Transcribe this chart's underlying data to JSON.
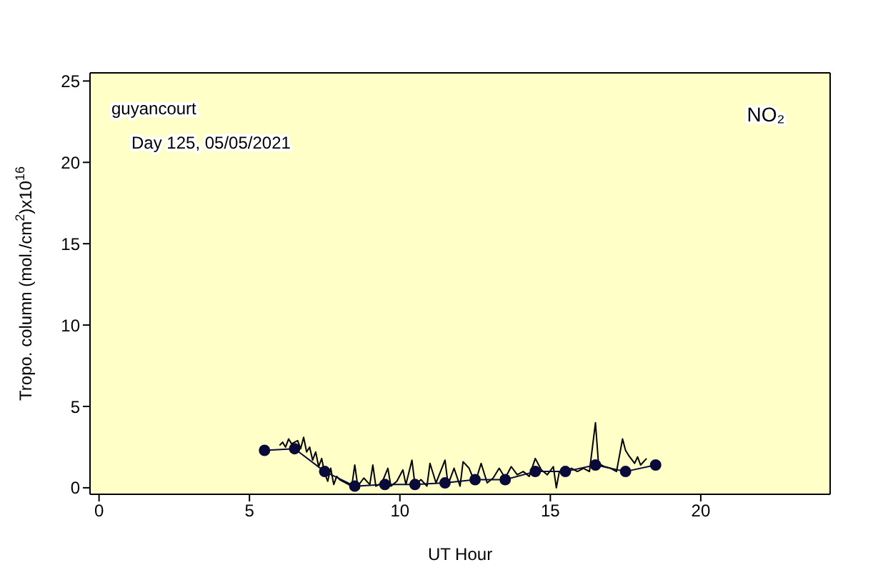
{
  "chart_data": {
    "type": "line",
    "xlabel": "UT Hour",
    "ylabel": "Tropo. column (mol./cm$^{2}$)x10$^{16}$",
    "annotations": [
      "guyancourt",
      "Day 125, 05/05/2021",
      "NO₂"
    ],
    "xlim": [
      -0.3,
      24.3
    ],
    "xticks": [
      0,
      5,
      10,
      15,
      20
    ],
    "ylim": [
      -0.4,
      25.5
    ],
    "yticks": [
      0,
      5,
      10,
      15,
      20,
      25
    ],
    "grid": false,
    "series": [
      {
        "color": "#000000",
        "marker": "none",
        "x": [
          6.0,
          6.1,
          6.2,
          6.3,
          6.4,
          6.6,
          6.7,
          6.8,
          6.9,
          7.0,
          7.1,
          7.2,
          7.3,
          7.4,
          7.5,
          7.6,
          7.7,
          7.8,
          7.9,
          8.0,
          8.2,
          8.4,
          8.5,
          8.6,
          8.8,
          9.0,
          9.1,
          9.2,
          9.4,
          9.6,
          9.7,
          9.9,
          10.1,
          10.2,
          10.4,
          10.5,
          10.7,
          10.9,
          11.0,
          11.2,
          11.5,
          11.6,
          11.8,
          12.0,
          12.1,
          12.3,
          12.5,
          12.7,
          12.9,
          13.1,
          13.3,
          13.5,
          13.7,
          13.9,
          14.1,
          14.3,
          14.5,
          14.7,
          14.9,
          15.1,
          15.2,
          15.3,
          15.5,
          15.7,
          15.9,
          16.1,
          16.3,
          16.5,
          16.6,
          16.8,
          17.0,
          17.2,
          17.4,
          17.5,
          17.6,
          17.8,
          17.9,
          18.0,
          18.2
        ],
        "values": [
          2.6,
          2.8,
          2.5,
          3.0,
          2.7,
          2.9,
          2.4,
          3.1,
          2.2,
          2.5,
          1.7,
          2.2,
          1.3,
          1.8,
          0.9,
          0.4,
          1.2,
          0.2,
          0.7,
          0.5,
          0.3,
          0.1,
          1.4,
          0.1,
          0.6,
          0.2,
          1.4,
          0.1,
          0.3,
          1.2,
          0.1,
          0.4,
          1.1,
          0.2,
          1.7,
          0.2,
          0.5,
          0.1,
          1.5,
          0.3,
          1.7,
          0.2,
          1.2,
          0.1,
          1.6,
          1.2,
          0.3,
          1.5,
          0.3,
          0.6,
          1.2,
          0.6,
          1.3,
          0.8,
          1.0,
          0.7,
          1.8,
          1.1,
          0.8,
          1.3,
          0.0,
          1.0,
          0.9,
          1.2,
          1.0,
          1.2,
          1.0,
          4.0,
          1.5,
          1.3,
          1.2,
          1.0,
          3.0,
          2.3,
          2.0,
          1.5,
          1.9,
          1.4,
          1.8
        ]
      },
      {
        "color": "#0a0a3a",
        "marker": "circle",
        "x": [
          5.5,
          6.5,
          7.5,
          8.5,
          9.5,
          10.5,
          11.5,
          12.5,
          13.5,
          14.5,
          15.5,
          16.5,
          17.5,
          18.5
        ],
        "values": [
          2.3,
          2.4,
          1.0,
          0.1,
          0.2,
          0.2,
          0.3,
          0.5,
          0.5,
          1.0,
          1.0,
          1.4,
          1.0,
          1.4
        ]
      }
    ]
  }
}
